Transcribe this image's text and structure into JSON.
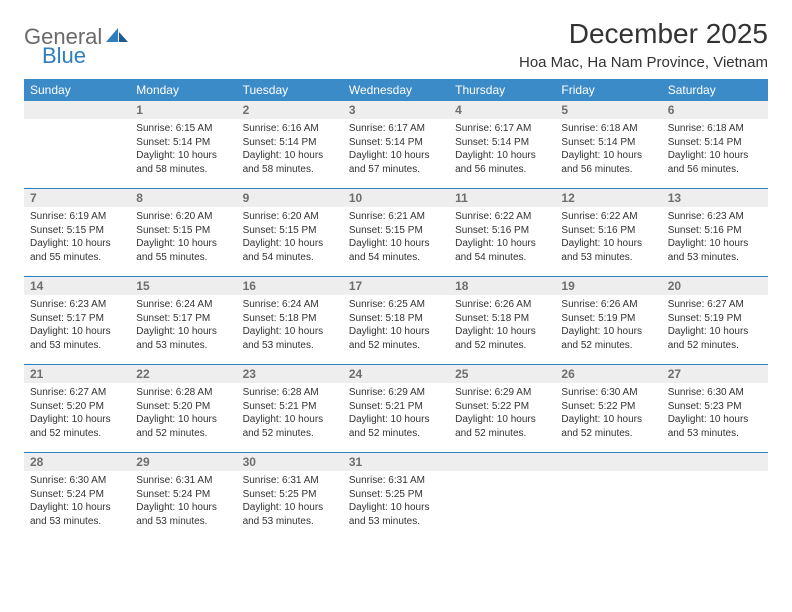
{
  "logo": {
    "text1": "General",
    "text2": "Blue"
  },
  "title": "December 2025",
  "location": "Hoa Mac, Ha Nam Province, Vietnam",
  "colors": {
    "header_bg": "#3b8bc8",
    "header_fg": "#ffffff",
    "daynum_bg": "#eeeeee",
    "daynum_fg": "#6e6e6e",
    "rule": "#2f7ec0",
    "logo_gray": "#6a6a6a",
    "logo_blue": "#2f7ec0"
  },
  "weekdays": [
    "Sunday",
    "Monday",
    "Tuesday",
    "Wednesday",
    "Thursday",
    "Friday",
    "Saturday"
  ],
  "weeks": [
    {
      "nums": [
        "",
        "1",
        "2",
        "3",
        "4",
        "5",
        "6"
      ],
      "cells": [
        {
          "sr": "",
          "ss": "",
          "d1": "",
          "d2": ""
        },
        {
          "sr": "Sunrise: 6:15 AM",
          "ss": "Sunset: 5:14 PM",
          "d1": "Daylight: 10 hours",
          "d2": "and 58 minutes."
        },
        {
          "sr": "Sunrise: 6:16 AM",
          "ss": "Sunset: 5:14 PM",
          "d1": "Daylight: 10 hours",
          "d2": "and 58 minutes."
        },
        {
          "sr": "Sunrise: 6:17 AM",
          "ss": "Sunset: 5:14 PM",
          "d1": "Daylight: 10 hours",
          "d2": "and 57 minutes."
        },
        {
          "sr": "Sunrise: 6:17 AM",
          "ss": "Sunset: 5:14 PM",
          "d1": "Daylight: 10 hours",
          "d2": "and 56 minutes."
        },
        {
          "sr": "Sunrise: 6:18 AM",
          "ss": "Sunset: 5:14 PM",
          "d1": "Daylight: 10 hours",
          "d2": "and 56 minutes."
        },
        {
          "sr": "Sunrise: 6:18 AM",
          "ss": "Sunset: 5:14 PM",
          "d1": "Daylight: 10 hours",
          "d2": "and 56 minutes."
        }
      ]
    },
    {
      "nums": [
        "7",
        "8",
        "9",
        "10",
        "11",
        "12",
        "13"
      ],
      "cells": [
        {
          "sr": "Sunrise: 6:19 AM",
          "ss": "Sunset: 5:15 PM",
          "d1": "Daylight: 10 hours",
          "d2": "and 55 minutes."
        },
        {
          "sr": "Sunrise: 6:20 AM",
          "ss": "Sunset: 5:15 PM",
          "d1": "Daylight: 10 hours",
          "d2": "and 55 minutes."
        },
        {
          "sr": "Sunrise: 6:20 AM",
          "ss": "Sunset: 5:15 PM",
          "d1": "Daylight: 10 hours",
          "d2": "and 54 minutes."
        },
        {
          "sr": "Sunrise: 6:21 AM",
          "ss": "Sunset: 5:15 PM",
          "d1": "Daylight: 10 hours",
          "d2": "and 54 minutes."
        },
        {
          "sr": "Sunrise: 6:22 AM",
          "ss": "Sunset: 5:16 PM",
          "d1": "Daylight: 10 hours",
          "d2": "and 54 minutes."
        },
        {
          "sr": "Sunrise: 6:22 AM",
          "ss": "Sunset: 5:16 PM",
          "d1": "Daylight: 10 hours",
          "d2": "and 53 minutes."
        },
        {
          "sr": "Sunrise: 6:23 AM",
          "ss": "Sunset: 5:16 PM",
          "d1": "Daylight: 10 hours",
          "d2": "and 53 minutes."
        }
      ]
    },
    {
      "nums": [
        "14",
        "15",
        "16",
        "17",
        "18",
        "19",
        "20"
      ],
      "cells": [
        {
          "sr": "Sunrise: 6:23 AM",
          "ss": "Sunset: 5:17 PM",
          "d1": "Daylight: 10 hours",
          "d2": "and 53 minutes."
        },
        {
          "sr": "Sunrise: 6:24 AM",
          "ss": "Sunset: 5:17 PM",
          "d1": "Daylight: 10 hours",
          "d2": "and 53 minutes."
        },
        {
          "sr": "Sunrise: 6:24 AM",
          "ss": "Sunset: 5:18 PM",
          "d1": "Daylight: 10 hours",
          "d2": "and 53 minutes."
        },
        {
          "sr": "Sunrise: 6:25 AM",
          "ss": "Sunset: 5:18 PM",
          "d1": "Daylight: 10 hours",
          "d2": "and 52 minutes."
        },
        {
          "sr": "Sunrise: 6:26 AM",
          "ss": "Sunset: 5:18 PM",
          "d1": "Daylight: 10 hours",
          "d2": "and 52 minutes."
        },
        {
          "sr": "Sunrise: 6:26 AM",
          "ss": "Sunset: 5:19 PM",
          "d1": "Daylight: 10 hours",
          "d2": "and 52 minutes."
        },
        {
          "sr": "Sunrise: 6:27 AM",
          "ss": "Sunset: 5:19 PM",
          "d1": "Daylight: 10 hours",
          "d2": "and 52 minutes."
        }
      ]
    },
    {
      "nums": [
        "21",
        "22",
        "23",
        "24",
        "25",
        "26",
        "27"
      ],
      "cells": [
        {
          "sr": "Sunrise: 6:27 AM",
          "ss": "Sunset: 5:20 PM",
          "d1": "Daylight: 10 hours",
          "d2": "and 52 minutes."
        },
        {
          "sr": "Sunrise: 6:28 AM",
          "ss": "Sunset: 5:20 PM",
          "d1": "Daylight: 10 hours",
          "d2": "and 52 minutes."
        },
        {
          "sr": "Sunrise: 6:28 AM",
          "ss": "Sunset: 5:21 PM",
          "d1": "Daylight: 10 hours",
          "d2": "and 52 minutes."
        },
        {
          "sr": "Sunrise: 6:29 AM",
          "ss": "Sunset: 5:21 PM",
          "d1": "Daylight: 10 hours",
          "d2": "and 52 minutes."
        },
        {
          "sr": "Sunrise: 6:29 AM",
          "ss": "Sunset: 5:22 PM",
          "d1": "Daylight: 10 hours",
          "d2": "and 52 minutes."
        },
        {
          "sr": "Sunrise: 6:30 AM",
          "ss": "Sunset: 5:22 PM",
          "d1": "Daylight: 10 hours",
          "d2": "and 52 minutes."
        },
        {
          "sr": "Sunrise: 6:30 AM",
          "ss": "Sunset: 5:23 PM",
          "d1": "Daylight: 10 hours",
          "d2": "and 53 minutes."
        }
      ]
    },
    {
      "nums": [
        "28",
        "29",
        "30",
        "31",
        "",
        "",
        ""
      ],
      "cells": [
        {
          "sr": "Sunrise: 6:30 AM",
          "ss": "Sunset: 5:24 PM",
          "d1": "Daylight: 10 hours",
          "d2": "and 53 minutes."
        },
        {
          "sr": "Sunrise: 6:31 AM",
          "ss": "Sunset: 5:24 PM",
          "d1": "Daylight: 10 hours",
          "d2": "and 53 minutes."
        },
        {
          "sr": "Sunrise: 6:31 AM",
          "ss": "Sunset: 5:25 PM",
          "d1": "Daylight: 10 hours",
          "d2": "and 53 minutes."
        },
        {
          "sr": "Sunrise: 6:31 AM",
          "ss": "Sunset: 5:25 PM",
          "d1": "Daylight: 10 hours",
          "d2": "and 53 minutes."
        },
        {
          "sr": "",
          "ss": "",
          "d1": "",
          "d2": ""
        },
        {
          "sr": "",
          "ss": "",
          "d1": "",
          "d2": ""
        },
        {
          "sr": "",
          "ss": "",
          "d1": "",
          "d2": ""
        }
      ]
    }
  ]
}
